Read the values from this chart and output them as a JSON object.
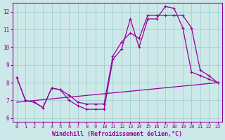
{
  "bg_color": "#cce8e8",
  "grid_color": "#99cccc",
  "line_color": "#990099",
  "xlabel": "Windchill (Refroidissement éolien,°C)",
  "xlim": [
    -0.5,
    23.5
  ],
  "ylim": [
    5.8,
    12.5
  ],
  "yticks": [
    6,
    7,
    8,
    9,
    10,
    11,
    12
  ],
  "xticks": [
    0,
    1,
    2,
    3,
    4,
    5,
    6,
    7,
    8,
    9,
    10,
    11,
    12,
    13,
    14,
    15,
    16,
    17,
    18,
    19,
    20,
    21,
    22,
    23
  ],
  "line1_x": [
    0,
    1,
    2,
    3,
    4,
    5,
    6,
    7,
    8,
    9,
    10,
    11,
    12,
    13,
    14,
    15,
    16,
    17,
    18,
    19,
    20,
    21,
    22,
    23
  ],
  "line1_y": [
    8.3,
    7.0,
    6.9,
    6.6,
    7.7,
    7.6,
    7.0,
    6.7,
    6.5,
    6.5,
    6.5,
    9.3,
    9.9,
    11.6,
    10.0,
    11.6,
    11.6,
    12.3,
    12.2,
    11.1,
    8.6,
    8.4,
    8.2,
    8.0
  ],
  "line2_x": [
    0,
    1,
    2,
    3,
    4,
    5,
    6,
    7,
    8,
    9,
    10,
    11,
    12,
    13,
    14,
    15,
    16,
    17,
    18,
    19,
    20,
    21,
    22,
    23
  ],
  "line2_y": [
    8.3,
    7.0,
    6.9,
    6.6,
    7.7,
    7.6,
    7.3,
    6.9,
    6.8,
    6.8,
    6.8,
    9.5,
    10.3,
    10.8,
    10.5,
    11.8,
    11.8,
    11.8,
    11.8,
    11.8,
    11.1,
    8.7,
    8.4,
    8.0
  ],
  "line3_x": [
    0,
    23
  ],
  "line3_y": [
    6.9,
    8.0
  ]
}
